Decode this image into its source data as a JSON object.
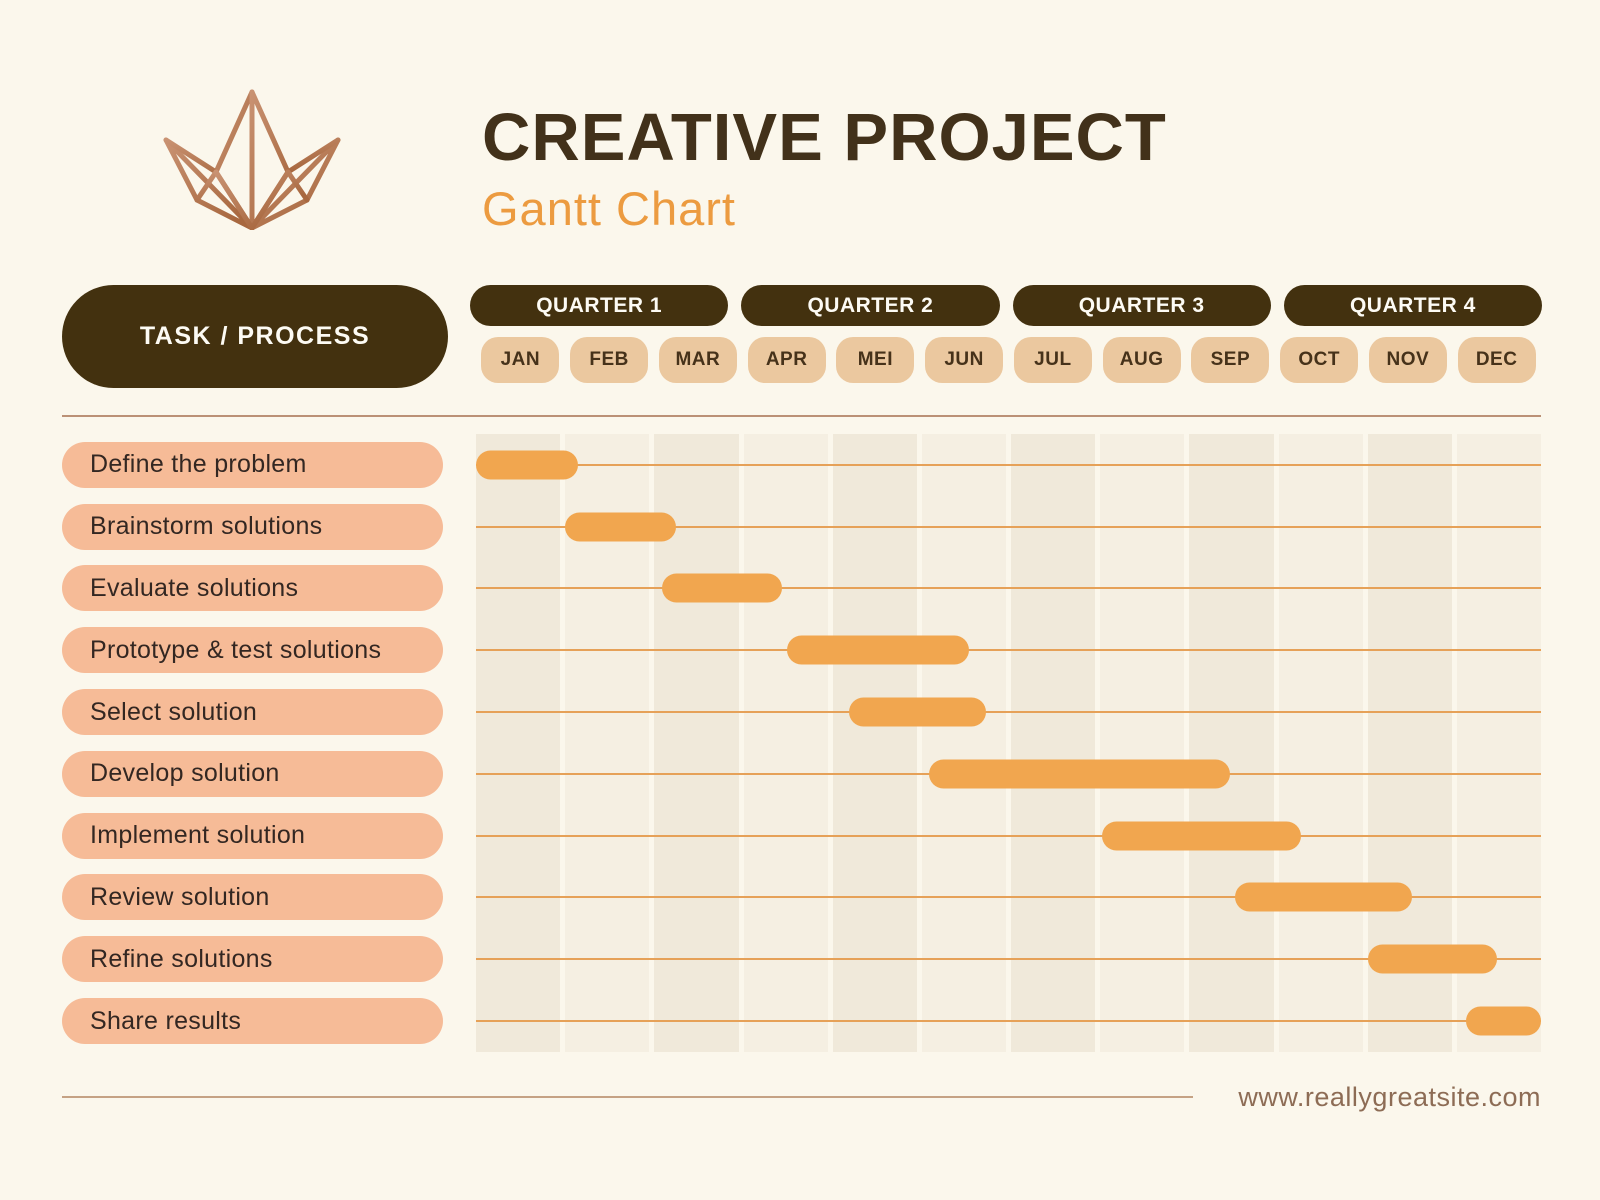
{
  "page": {
    "footer_url": "www.reallygreatsite.com"
  },
  "header": {
    "title": "CREATIVE PROJECT",
    "subtitle": "Gantt Chart",
    "logo_icon": "crown-icon"
  },
  "table": {
    "task_header": "TASK / PROCESS"
  },
  "chart_data": {
    "type": "gantt",
    "title": "CREATIVE PROJECT",
    "subtitle": "Gantt Chart",
    "x_axis": {
      "quarters": [
        "QUARTER 1",
        "QUARTER 2",
        "QUARTER 3",
        "QUARTER 4"
      ],
      "months": [
        "JAN",
        "FEB",
        "MAR",
        "APR",
        "MEI",
        "JUN",
        "JUL",
        "AUG",
        "SEP",
        "OCT",
        "NOV",
        "DEC"
      ],
      "range_months": [
        0,
        12
      ]
    },
    "tasks": [
      {
        "label": "Define the problem",
        "start_month": 0.0,
        "end_month": 1.15
      },
      {
        "label": "Brainstorm solutions",
        "start_month": 1.0,
        "end_month": 2.25
      },
      {
        "label": "Evaluate solutions",
        "start_month": 2.1,
        "end_month": 3.45
      },
      {
        "label": "Prototype & test solutions",
        "start_month": 3.5,
        "end_month": 5.55
      },
      {
        "label": "Select solution",
        "start_month": 4.2,
        "end_month": 5.75
      },
      {
        "label": "Develop solution",
        "start_month": 5.1,
        "end_month": 8.5
      },
      {
        "label": "Implement solution",
        "start_month": 7.05,
        "end_month": 9.3
      },
      {
        "label": "Review solution",
        "start_month": 8.55,
        "end_month": 10.55
      },
      {
        "label": "Refine solutions",
        "start_month": 10.05,
        "end_month": 11.5
      },
      {
        "label": "Share results",
        "start_month": 11.15,
        "end_month": 12.0
      }
    ]
  },
  "colors": {
    "background": "#fbf7ec",
    "dark_brown": "#43310f",
    "accent_orange": "#ec9b40",
    "bar_orange": "#f1a64f",
    "month_tan": "#ebc89f",
    "task_salmon": "#f6bb97",
    "logo_copper": "#b5764e"
  }
}
